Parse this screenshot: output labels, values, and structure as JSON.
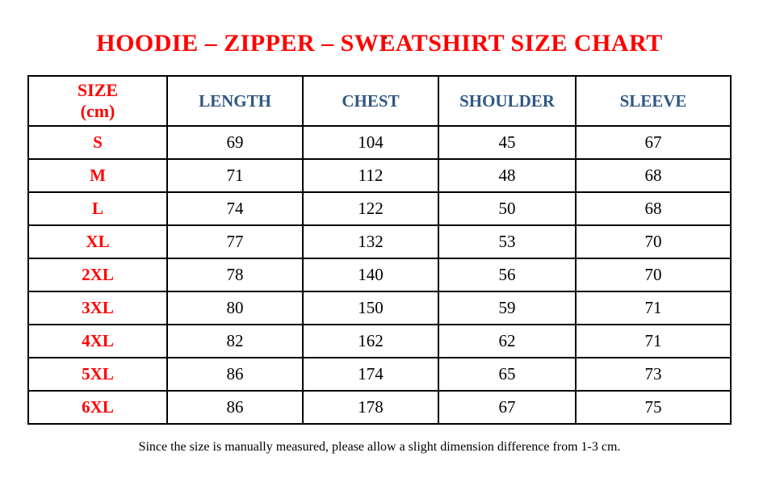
{
  "page": {
    "top_mark": ".",
    "title": "HOODIE – ZIPPER – SWEATSHIRT SIZE CHART",
    "footer_note": "Since the size is manually measured, please allow a slight dimension difference from 1-3 cm."
  },
  "colors": {
    "title_red": "#FF0000",
    "size_column_red": "#FF0000",
    "header_blue": "#2E5784",
    "body_text": "#000000",
    "border": "#000000",
    "background": "#FFFFFF"
  },
  "chart_data": {
    "type": "table",
    "title": "HOODIE – ZIPPER – SWEATSHIRT SIZE CHART",
    "unit": "cm",
    "columns": [
      "SIZE\n(cm)",
      "LENGTH",
      "CHEST",
      "SHOULDER",
      "SLEEVE"
    ],
    "rows": [
      {
        "size": "S",
        "values": [
          69,
          104,
          45,
          67
        ]
      },
      {
        "size": "M",
        "values": [
          71,
          112,
          48,
          68
        ]
      },
      {
        "size": "L",
        "values": [
          74,
          122,
          50,
          68
        ]
      },
      {
        "size": "XL",
        "values": [
          77,
          132,
          53,
          70
        ]
      },
      {
        "size": "2XL",
        "values": [
          78,
          140,
          56,
          70
        ]
      },
      {
        "size": "3XL",
        "values": [
          80,
          150,
          59,
          71
        ]
      },
      {
        "size": "4XL",
        "values": [
          82,
          162,
          62,
          71
        ]
      },
      {
        "size": "5XL",
        "values": [
          86,
          174,
          65,
          73
        ]
      },
      {
        "size": "6XL",
        "values": [
          86,
          178,
          67,
          75
        ]
      }
    ],
    "footnote": "Since the size is manually measured, please allow a slight dimension difference from 1-3 cm."
  }
}
